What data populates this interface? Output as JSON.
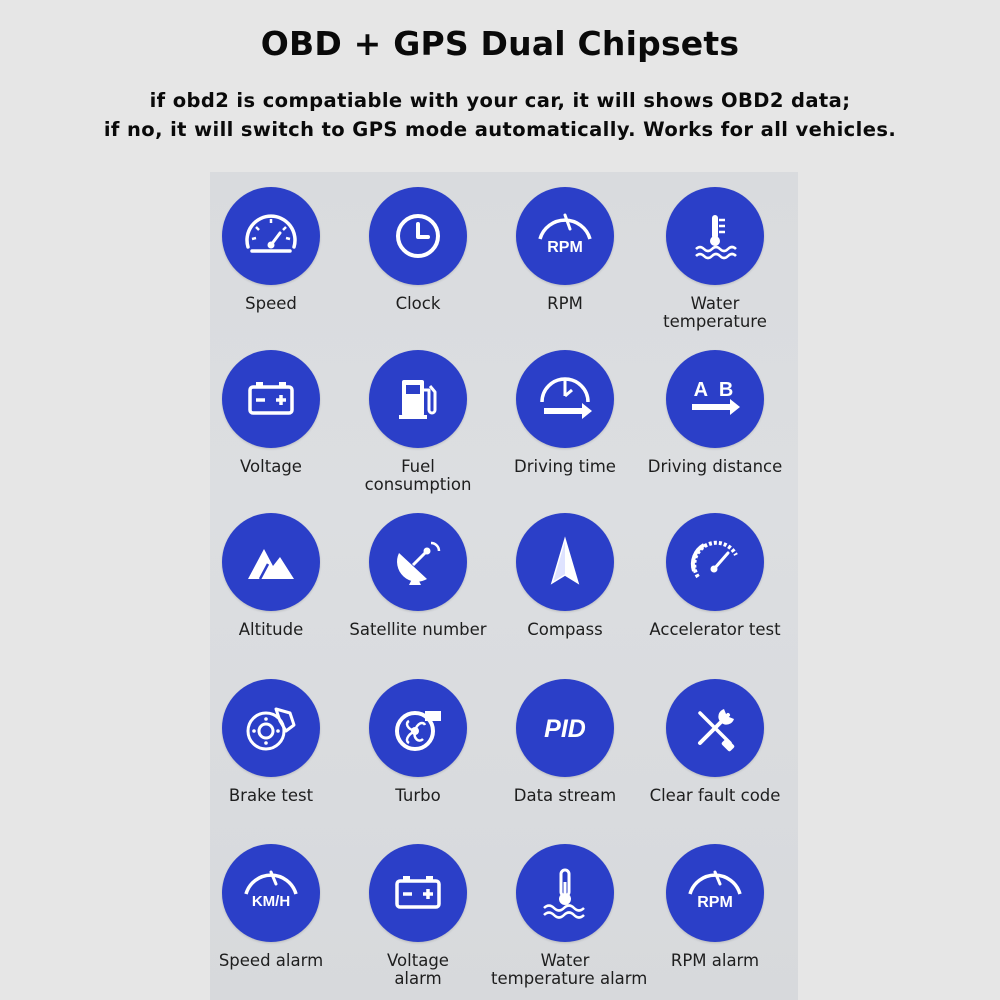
{
  "header": {
    "title": "OBD + GPS Dual Chipsets",
    "subtitle_line1": "if obd2 is compatiable with your car, it will shows OBD2 data;",
    "subtitle_line2": "if no, it will switch to GPS mode automatically. Works for all vehicles."
  },
  "colors": {
    "circle": "#2b3fc8",
    "icon": "#ffffff",
    "background": "#e6e6e6"
  },
  "features": [
    {
      "label": "Speed",
      "icon": "speedometer-icon"
    },
    {
      "label": "Clock",
      "icon": "clock-icon"
    },
    {
      "label": "RPM",
      "icon": "rpm-gauge-icon",
      "icon_text": "RPM"
    },
    {
      "label_line1": "Water",
      "label_line2": "temperature",
      "icon": "water-temperature-icon"
    },
    {
      "label": "Voltage",
      "icon": "battery-icon"
    },
    {
      "label_line1": "Fuel",
      "label_line2": "consumption",
      "icon": "fuel-pump-icon"
    },
    {
      "label": "Driving time",
      "icon": "driving-time-icon"
    },
    {
      "label": "Driving distance",
      "icon": "a-to-b-icon",
      "icon_text": "A B"
    },
    {
      "label": "Altitude",
      "icon": "mountain-icon"
    },
    {
      "label": "Satellite number",
      "icon": "satellite-dish-icon"
    },
    {
      "label": "Compass",
      "icon": "compass-icon"
    },
    {
      "label": "Accelerator test",
      "icon": "accelerator-gauge-icon"
    },
    {
      "label": "Brake test",
      "icon": "brake-disc-icon"
    },
    {
      "label": "Turbo",
      "icon": "turbo-icon"
    },
    {
      "label": "Data stream",
      "icon": "pid-icon",
      "icon_text": "PID"
    },
    {
      "label": "Clear fault code",
      "icon": "wrench-screwdriver-icon"
    },
    {
      "label": "Speed alarm",
      "icon": "kmh-gauge-icon",
      "icon_text": "KM/H"
    },
    {
      "label_line1": "Voltage",
      "label_line2": "alarm",
      "icon": "battery-alarm-icon"
    },
    {
      "label_line1": "Water",
      "label_line2": "temperature alarm",
      "icon": "thermometer-alarm-icon"
    },
    {
      "label": "RPM alarm",
      "icon": "rpm-alarm-icon",
      "icon_text": "RPM"
    }
  ]
}
